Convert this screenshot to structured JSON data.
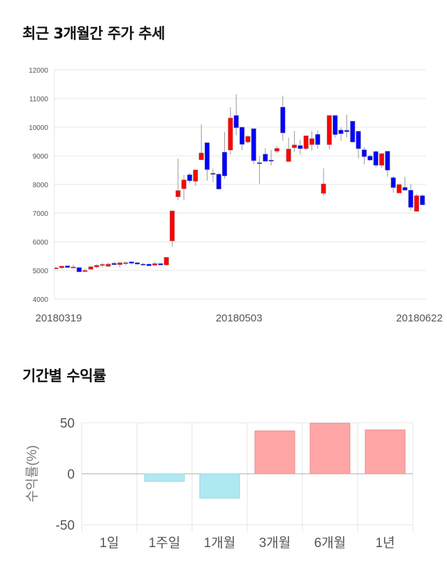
{
  "section1": {
    "title": "최근 3개월간 주가 추세"
  },
  "section2": {
    "title": "기간별 수익률"
  },
  "colors": {
    "up": "#ff0000",
    "down": "#0000ff",
    "positive_bar": "#ffa5a5",
    "negative_bar": "#aee9f2",
    "grid": "#e5e5e5"
  },
  "chart_data": [
    {
      "type": "candlestick",
      "title": "최근 3개월간 주가 추세",
      "ylim": [
        4000,
        12000
      ],
      "yticks": [
        4000,
        5000,
        6000,
        7000,
        8000,
        9000,
        10000,
        11000,
        12000
      ],
      "xtick_labels": [
        {
          "index": 0,
          "label": "20180319"
        },
        {
          "index": 31,
          "label": "20180503"
        },
        {
          "index": 62,
          "label": "20180622"
        }
      ],
      "candles_ohlc": [
        [
          5080,
          5100,
          5050,
          5090
        ],
        [
          5090,
          5160,
          5050,
          5150
        ],
        [
          5160,
          5170,
          5090,
          5100
        ],
        [
          5100,
          5200,
          5090,
          5120
        ],
        [
          5100,
          5110,
          4940,
          4950
        ],
        [
          4960,
          5060,
          4950,
          5000
        ],
        [
          5040,
          5150,
          5030,
          5130
        ],
        [
          5120,
          5210,
          5080,
          5180
        ],
        [
          5200,
          5260,
          5110,
          5210
        ],
        [
          5140,
          5270,
          5130,
          5220
        ],
        [
          5250,
          5310,
          5190,
          5200
        ],
        [
          5200,
          5280,
          5100,
          5270
        ],
        [
          5260,
          5320,
          5180,
          5270
        ],
        [
          5300,
          5330,
          5200,
          5250
        ],
        [
          5270,
          5290,
          5200,
          5220
        ],
        [
          5220,
          5260,
          5170,
          5200
        ],
        [
          5220,
          5240,
          5150,
          5160
        ],
        [
          5180,
          5290,
          5170,
          5240
        ],
        [
          5240,
          5250,
          5180,
          5190
        ],
        [
          5190,
          5460,
          5160,
          5460
        ],
        [
          6030,
          7080,
          5820,
          7080
        ],
        [
          7570,
          8900,
          7450,
          7790
        ],
        [
          7850,
          8330,
          7450,
          8160
        ],
        [
          8340,
          8400,
          8050,
          8130
        ],
        [
          8110,
          8510,
          7950,
          8510
        ],
        [
          8860,
          10100,
          8850,
          9100
        ],
        [
          9460,
          9460,
          8130,
          8520
        ],
        [
          8390,
          8550,
          8080,
          8370
        ],
        [
          8360,
          8400,
          7830,
          7840
        ],
        [
          9130,
          9840,
          8200,
          8300
        ],
        [
          9200,
          10700,
          9050,
          10320
        ],
        [
          10410,
          11150,
          9720,
          9980
        ],
        [
          10000,
          10000,
          9200,
          9400
        ],
        [
          9480,
          9720,
          9430,
          9680
        ],
        [
          9950,
          9950,
          8700,
          8830
        ],
        [
          8760,
          8990,
          8020,
          8740
        ],
        [
          9060,
          9270,
          8800,
          8810
        ],
        [
          8850,
          9200,
          8660,
          8840
        ],
        [
          9160,
          9330,
          9100,
          9260
        ],
        [
          10700,
          11100,
          9530,
          9800
        ],
        [
          8800,
          9640,
          8790,
          9240
        ],
        [
          9280,
          9870,
          9130,
          9380
        ],
        [
          9360,
          9560,
          9050,
          9250
        ],
        [
          9250,
          9700,
          9200,
          9700
        ],
        [
          9390,
          9870,
          9180,
          9600
        ],
        [
          9750,
          9890,
          9250,
          9390
        ],
        [
          7690,
          8560,
          7600,
          8020
        ],
        [
          9390,
          10410,
          9230,
          10410
        ],
        [
          10410,
          10410,
          9640,
          9740
        ],
        [
          9900,
          9990,
          9530,
          9770
        ],
        [
          9890,
          10440,
          9640,
          9840
        ],
        [
          10210,
          10210,
          9460,
          9480
        ],
        [
          9860,
          9860,
          8910,
          9250
        ],
        [
          9210,
          9290,
          8710,
          8970
        ],
        [
          8990,
          9050,
          8830,
          8850
        ],
        [
          9150,
          9180,
          8590,
          8670
        ],
        [
          8670,
          9090,
          8590,
          9080
        ],
        [
          9160,
          9180,
          8270,
          8500
        ],
        [
          8240,
          8300,
          7720,
          7890
        ],
        [
          7700,
          8020,
          7700,
          8000
        ],
        [
          7900,
          8270,
          7780,
          7800
        ],
        [
          7800,
          8020,
          7100,
          7200
        ],
        [
          7060,
          7660,
          7050,
          7610
        ],
        [
          7610,
          7660,
          7270,
          7290
        ],
        [
          7330,
          7440,
          7240,
          7290
        ]
      ]
    },
    {
      "type": "bar",
      "title": "기간별 수익률",
      "ylabel": "수익률(%)",
      "ylim": [
        -50,
        50
      ],
      "yticks": [
        "50",
        "0",
        "-50"
      ],
      "ytick_values": [
        50,
        0,
        -50
      ],
      "categories": [
        "1일",
        "1주일",
        "1개월",
        "3개월",
        "6개월",
        "1년"
      ],
      "values": [
        0,
        -7.5,
        -24,
        42,
        49.5,
        43
      ]
    }
  ]
}
